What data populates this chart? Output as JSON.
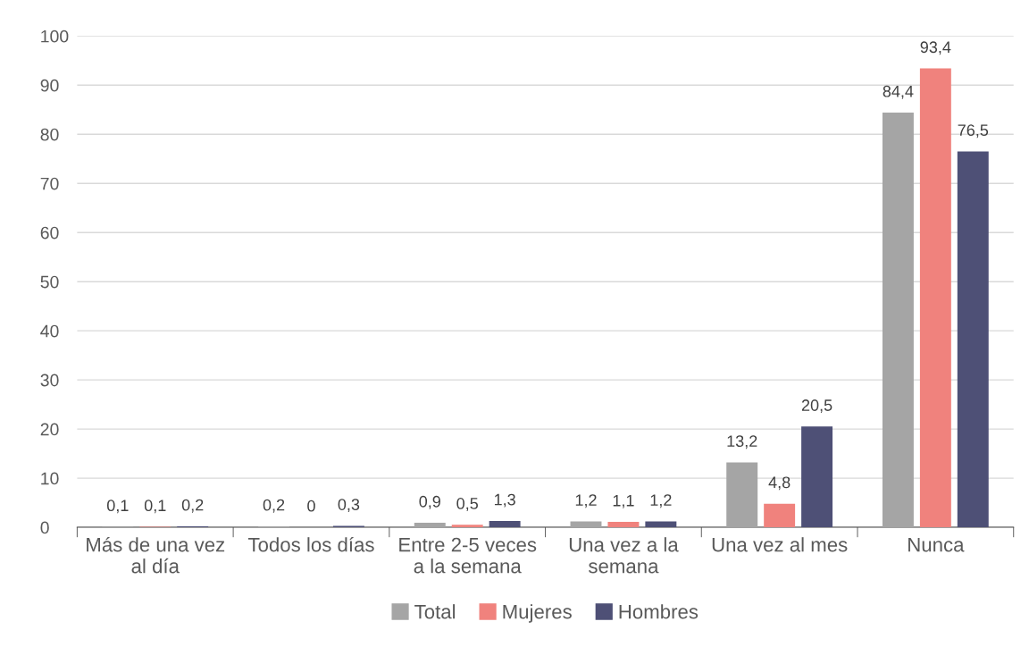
{
  "chart_data": {
    "type": "bar",
    "categories": [
      "Más de una vez\nal día",
      "Todos los días",
      "Entre 2-5 veces\na la semana",
      "Una vez a la\nsemana",
      "Una vez al mes",
      "Nunca"
    ],
    "series": [
      {
        "name": "Total",
        "color": "#a5a5a5",
        "values": [
          0.1,
          0.2,
          0.9,
          1.2,
          13.2,
          84.4
        ],
        "value_labels": [
          "0,1",
          "0,2",
          "0,9",
          "1,2",
          "13,2",
          "84,4"
        ]
      },
      {
        "name": "Mujeres",
        "color": "#f0827d",
        "values": [
          0.1,
          0,
          0.5,
          1.1,
          4.8,
          93.4
        ],
        "value_labels": [
          "0,1",
          "0",
          "0,5",
          "1,1",
          "4,8",
          "93,4"
        ]
      },
      {
        "name": "Hombres",
        "color": "#4e5076",
        "values": [
          0.2,
          0.3,
          1.3,
          1.2,
          20.5,
          76.5
        ],
        "value_labels": [
          "0,2",
          "0,3",
          "1,3",
          "1,2",
          "20,5",
          "76,5"
        ]
      }
    ],
    "ylim": [
      0,
      100
    ],
    "yticks": [
      0,
      10,
      20,
      30,
      40,
      50,
      60,
      70,
      80,
      90,
      100
    ],
    "grid": "y",
    "legend": "bottom"
  }
}
